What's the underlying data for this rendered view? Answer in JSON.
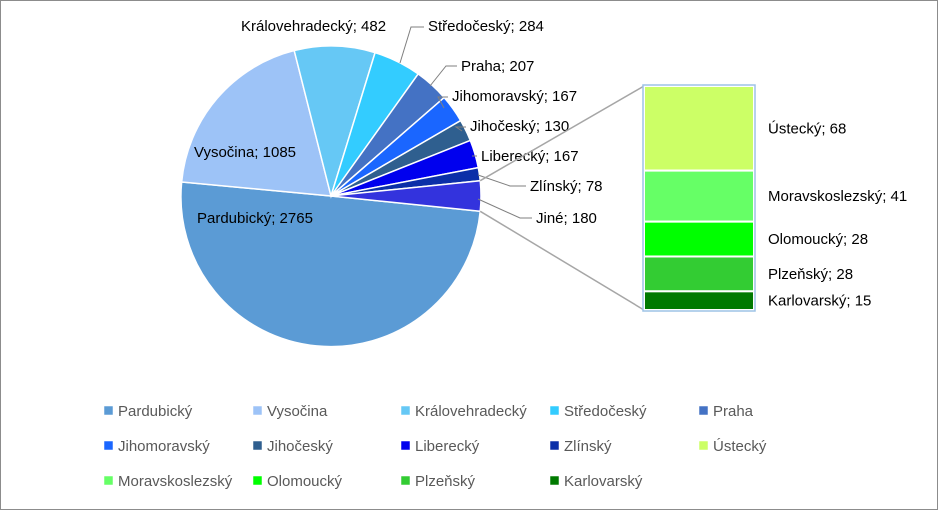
{
  "chart_data": {
    "type": "pie",
    "subtype": "bar-of-pie",
    "title": "",
    "slices": [
      {
        "name": "Pardubický",
        "value": 2765,
        "label": "Pardubický; 2765",
        "color": "#5b9bd5"
      },
      {
        "name": "Vysočina",
        "value": 1085,
        "label": "Vysočina; 1085",
        "color": "#9dc3f7"
      },
      {
        "name": "Královehradecký",
        "value": 482,
        "label": "Královehradecký; 482",
        "color": "#66c8f5"
      },
      {
        "name": "Středočeský",
        "value": 284,
        "label": "Středočeský; 284",
        "color": "#33ccff"
      },
      {
        "name": "Praha",
        "value": 207,
        "label": "Praha; 207",
        "color": "#4472c4"
      },
      {
        "name": "Jihomoravský",
        "value": 167,
        "label": "Jihomoravský; 167",
        "color": "#1a66ff"
      },
      {
        "name": "Jihočeský",
        "value": 130,
        "label": "Jihočeský; 130",
        "color": "#2f5f8f"
      },
      {
        "name": "Liberecký",
        "value": 167,
        "label": "Liberecký; 167",
        "color": "#0000ee"
      },
      {
        "name": "Zlínský",
        "value": 78,
        "label": "Zlínský; 78",
        "color": "#0b2fa8"
      },
      {
        "name": "Jiné",
        "value": 180,
        "label": "Jiné;  180",
        "color": "#3333dd"
      }
    ],
    "bar_segments": [
      {
        "name": "Ústecký",
        "value": 68,
        "label": "Ústecký; 68",
        "color": "#ccff66"
      },
      {
        "name": "Moravskoslezský",
        "value": 41,
        "label": "Moravskoslezský; 41",
        "color": "#66ff66"
      },
      {
        "name": "Olomoucký",
        "value": 28,
        "label": "Olomoucký; 28",
        "color": "#00ff00"
      },
      {
        "name": "Plzeňský",
        "value": 28,
        "label": "Plzeňský; 28",
        "color": "#33cc33"
      },
      {
        "name": "Karlovarský",
        "value": 15,
        "label": "Karlovarský; 15",
        "color": "#007a00"
      }
    ],
    "legend": {
      "position": "bottom",
      "items": [
        {
          "name": "Pardubický",
          "color": "#5b9bd5"
        },
        {
          "name": "Vysočina",
          "color": "#9dc3f7"
        },
        {
          "name": "Královehradecký",
          "color": "#66c8f5"
        },
        {
          "name": "Středočeský",
          "color": "#33ccff"
        },
        {
          "name": "Praha",
          "color": "#4472c4"
        },
        {
          "name": "Jihomoravský",
          "color": "#1a66ff"
        },
        {
          "name": "Jihočeský",
          "color": "#2f5f8f"
        },
        {
          "name": "Liberecký",
          "color": "#0000ee"
        },
        {
          "name": "Zlínský",
          "color": "#0b2fa8"
        },
        {
          "name": "Ústecký",
          "color": "#ccff66"
        },
        {
          "name": "Moravskoslezský",
          "color": "#66ff66"
        },
        {
          "name": "Olomoucký",
          "color": "#00ff00"
        },
        {
          "name": "Plzeňský",
          "color": "#33cc33"
        },
        {
          "name": "Karlovarský",
          "color": "#007a00"
        }
      ]
    }
  }
}
